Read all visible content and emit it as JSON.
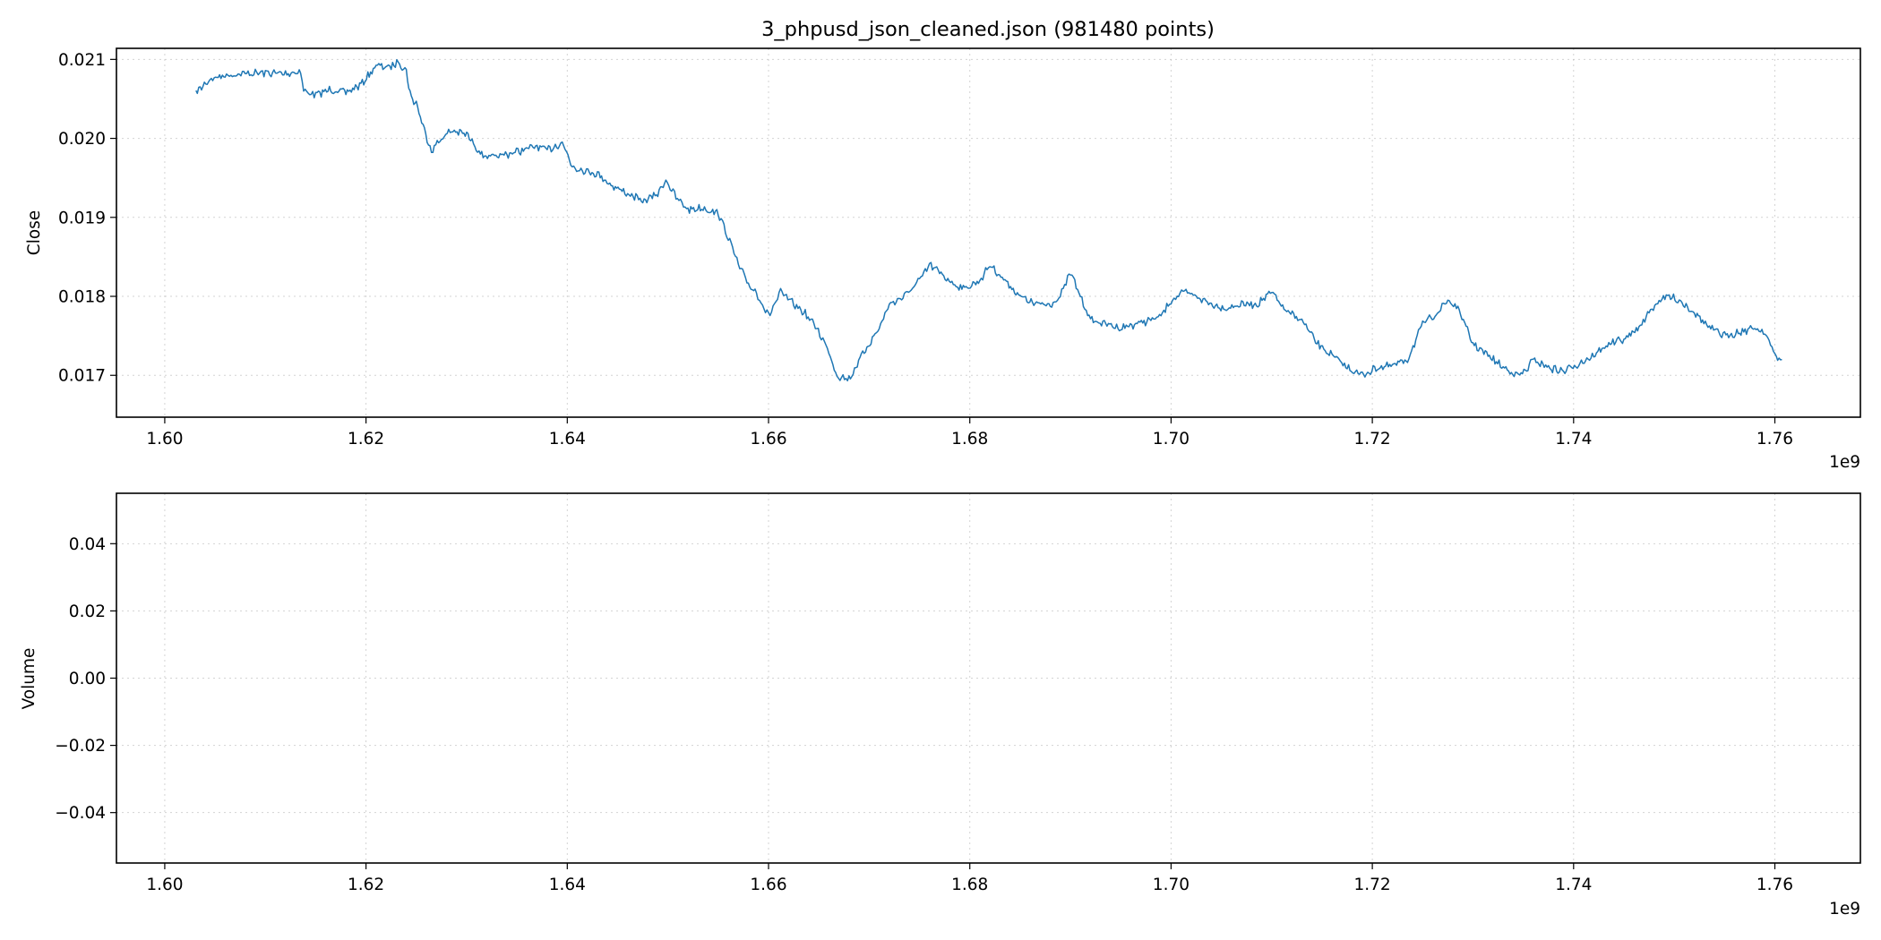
{
  "title": "3_phpusd_json_cleaned.json (981480 points)",
  "colors": {
    "series": "#1f77b4",
    "grid": "#b0b0b0",
    "axes": "#000000"
  },
  "chart_data": [
    {
      "type": "line",
      "ylabel": "Close",
      "x_offset_label": "1e9",
      "x_scale": 1000000000.0,
      "xlim": [
        1.5952,
        1.7685
      ],
      "ylim": [
        0.01647,
        0.02114
      ],
      "grid": true,
      "xticks": [
        1.6,
        1.62,
        1.64,
        1.66,
        1.68,
        1.7,
        1.72,
        1.74,
        1.76
      ],
      "xtick_labels": [
        "1.60",
        "1.62",
        "1.64",
        "1.66",
        "1.68",
        "1.70",
        "1.72",
        "1.74",
        "1.76"
      ],
      "yticks": [
        0.017,
        0.018,
        0.019,
        0.02,
        0.021
      ],
      "ytick_labels": [
        "0.017",
        "0.018",
        "0.019",
        "0.020",
        "0.021"
      ],
      "series": [
        {
          "x": [
            1.6031,
            1.6045,
            1.606,
            1.608,
            1.61,
            1.612,
            1.6135,
            1.6138,
            1.615,
            1.6165,
            1.618,
            1.6195,
            1.621,
            1.6225,
            1.6232,
            1.624,
            1.6245,
            1.625,
            1.6258,
            1.6265,
            1.6275,
            1.6285,
            1.63,
            1.6315,
            1.6325,
            1.634,
            1.6355,
            1.637,
            1.638,
            1.6395,
            1.6405,
            1.6415,
            1.643,
            1.6445,
            1.646,
            1.6475,
            1.649,
            1.6498,
            1.6508,
            1.652,
            1.6535,
            1.655,
            1.656,
            1.657,
            1.658,
            1.6588,
            1.66,
            1.6612,
            1.6625,
            1.6635,
            1.6648,
            1.666,
            1.6668,
            1.668,
            1.6695,
            1.671,
            1.672,
            1.6735,
            1.675,
            1.676,
            1.677,
            1.6785,
            1.6795,
            1.681,
            1.682,
            1.6835,
            1.685,
            1.6865,
            1.688,
            1.689,
            1.69,
            1.691,
            1.692,
            1.6935,
            1.695,
            1.6965,
            1.698,
            1.699,
            1.7,
            1.7012,
            1.7025,
            1.704,
            1.7055,
            1.707,
            1.7085,
            1.71,
            1.7115,
            1.713,
            1.7145,
            1.716,
            1.7175,
            1.719,
            1.7205,
            1.722,
            1.7235,
            1.725,
            1.7265,
            1.7275,
            1.7285,
            1.73,
            1.7315,
            1.733,
            1.7345,
            1.7352,
            1.736,
            1.7375,
            1.739,
            1.7405,
            1.742,
            1.7435,
            1.745,
            1.7465,
            1.7475,
            1.7485,
            1.7495,
            1.7505,
            1.752,
            1.7535,
            1.755,
            1.7565,
            1.758,
            1.759,
            1.76,
            1.7607
          ],
          "y": [
            0.02058,
            0.02075,
            0.0208,
            0.02082,
            0.02083,
            0.02082,
            0.02085,
            0.0206,
            0.02055,
            0.02062,
            0.02058,
            0.02068,
            0.02092,
            0.0209,
            0.02098,
            0.02085,
            0.0205,
            0.02045,
            0.0201,
            0.01985,
            0.02,
            0.0201,
            0.02005,
            0.0198,
            0.01975,
            0.0198,
            0.01985,
            0.0199,
            0.01985,
            0.01995,
            0.01965,
            0.0196,
            0.01955,
            0.0194,
            0.0193,
            0.0192,
            0.0193,
            0.01948,
            0.01925,
            0.0191,
            0.01912,
            0.01905,
            0.01875,
            0.0184,
            0.01815,
            0.01805,
            0.01775,
            0.01805,
            0.0179,
            0.0178,
            0.0176,
            0.0173,
            0.017,
            0.01695,
            0.0173,
            0.0176,
            0.0179,
            0.018,
            0.0182,
            0.0184,
            0.0183,
            0.01815,
            0.0181,
            0.0182,
            0.0184,
            0.0182,
            0.018,
            0.0179,
            0.0179,
            0.018,
            0.0183,
            0.018,
            0.0177,
            0.01765,
            0.0176,
            0.01765,
            0.0177,
            0.01775,
            0.01795,
            0.01805,
            0.018,
            0.0179,
            0.01785,
            0.0179,
            0.0179,
            0.01805,
            0.0178,
            0.0177,
            0.0174,
            0.01725,
            0.0171,
            0.017,
            0.0171,
            0.01712,
            0.0172,
            0.01765,
            0.0178,
            0.01795,
            0.01785,
            0.0174,
            0.01725,
            0.0171,
            0.017,
            0.01705,
            0.0172,
            0.0171,
            0.01705,
            0.01715,
            0.01725,
            0.0174,
            0.01745,
            0.0176,
            0.0178,
            0.01795,
            0.018,
            0.01795,
            0.0178,
            0.0176,
            0.0175,
            0.01755,
            0.0176,
            0.01755,
            0.01725,
            0.0172
          ]
        }
      ]
    },
    {
      "type": "line",
      "ylabel": "Volume",
      "x_offset_label": "1e9",
      "x_scale": 1000000000.0,
      "xlim": [
        1.5952,
        1.7685
      ],
      "ylim": [
        -0.055,
        0.055
      ],
      "grid": true,
      "xticks": [
        1.6,
        1.62,
        1.64,
        1.66,
        1.68,
        1.7,
        1.72,
        1.74,
        1.76
      ],
      "xtick_labels": [
        "1.60",
        "1.62",
        "1.64",
        "1.66",
        "1.68",
        "1.70",
        "1.72",
        "1.74",
        "1.76"
      ],
      "yticks": [
        -0.04,
        -0.02,
        0.0,
        0.02,
        0.04
      ],
      "ytick_labels": [
        "−0.04",
        "−0.02",
        "0.00",
        "0.02",
        "0.04"
      ],
      "series": []
    }
  ]
}
